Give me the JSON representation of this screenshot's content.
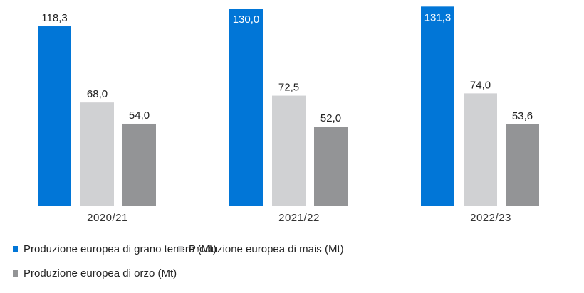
{
  "chart_data": {
    "type": "bar",
    "title": "",
    "xlabel": "",
    "ylabel": "",
    "ylim": [
      0,
      135.7
    ],
    "grid": false,
    "legend_position": "bottom",
    "categories": [
      "2020/21",
      "2021/22",
      "2022/23"
    ],
    "series": [
      {
        "name": "Produzione europea di grano tenero (Mt)",
        "color": "#0176d7",
        "values": [
          118.3,
          130.0,
          131.3
        ],
        "labels": [
          "118,3",
          "130,0",
          "131,3"
        ]
      },
      {
        "name": "Produzione europea di mais (Mt)",
        "color": "#d0d1d3",
        "values": [
          68.0,
          72.5,
          74.0
        ],
        "labels": [
          "68,0",
          "72,5",
          "74,0"
        ]
      },
      {
        "name": "Produzione europea di orzo (Mt)",
        "color": "#939496",
        "values": [
          54.0,
          52.0,
          53.6
        ],
        "labels": [
          "54,0",
          "52,0",
          "53,6"
        ]
      }
    ]
  }
}
